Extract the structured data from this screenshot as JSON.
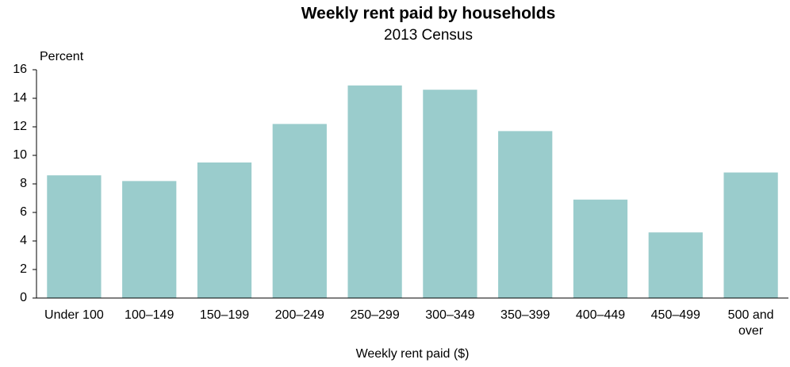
{
  "chart_data": {
    "type": "bar",
    "title": "Weekly rent paid by households",
    "subtitle": "2013 Census",
    "y_label": "Percent",
    "x_label": "Weekly rent paid ($)",
    "categories": [
      "Under 100",
      "100–149",
      "150–199",
      "200–249",
      "250–299",
      "300–349",
      "350–399",
      "400–449",
      "450–499",
      "500 and over"
    ],
    "values": [
      8.6,
      8.2,
      9.5,
      12.2,
      14.9,
      14.6,
      11.7,
      6.9,
      4.6,
      8.8
    ],
    "color": "#9acccc",
    "ylim": [
      0,
      16
    ],
    "yticks": [
      0,
      2,
      4,
      6,
      8,
      10,
      12,
      14,
      16
    ],
    "grid": false
  }
}
